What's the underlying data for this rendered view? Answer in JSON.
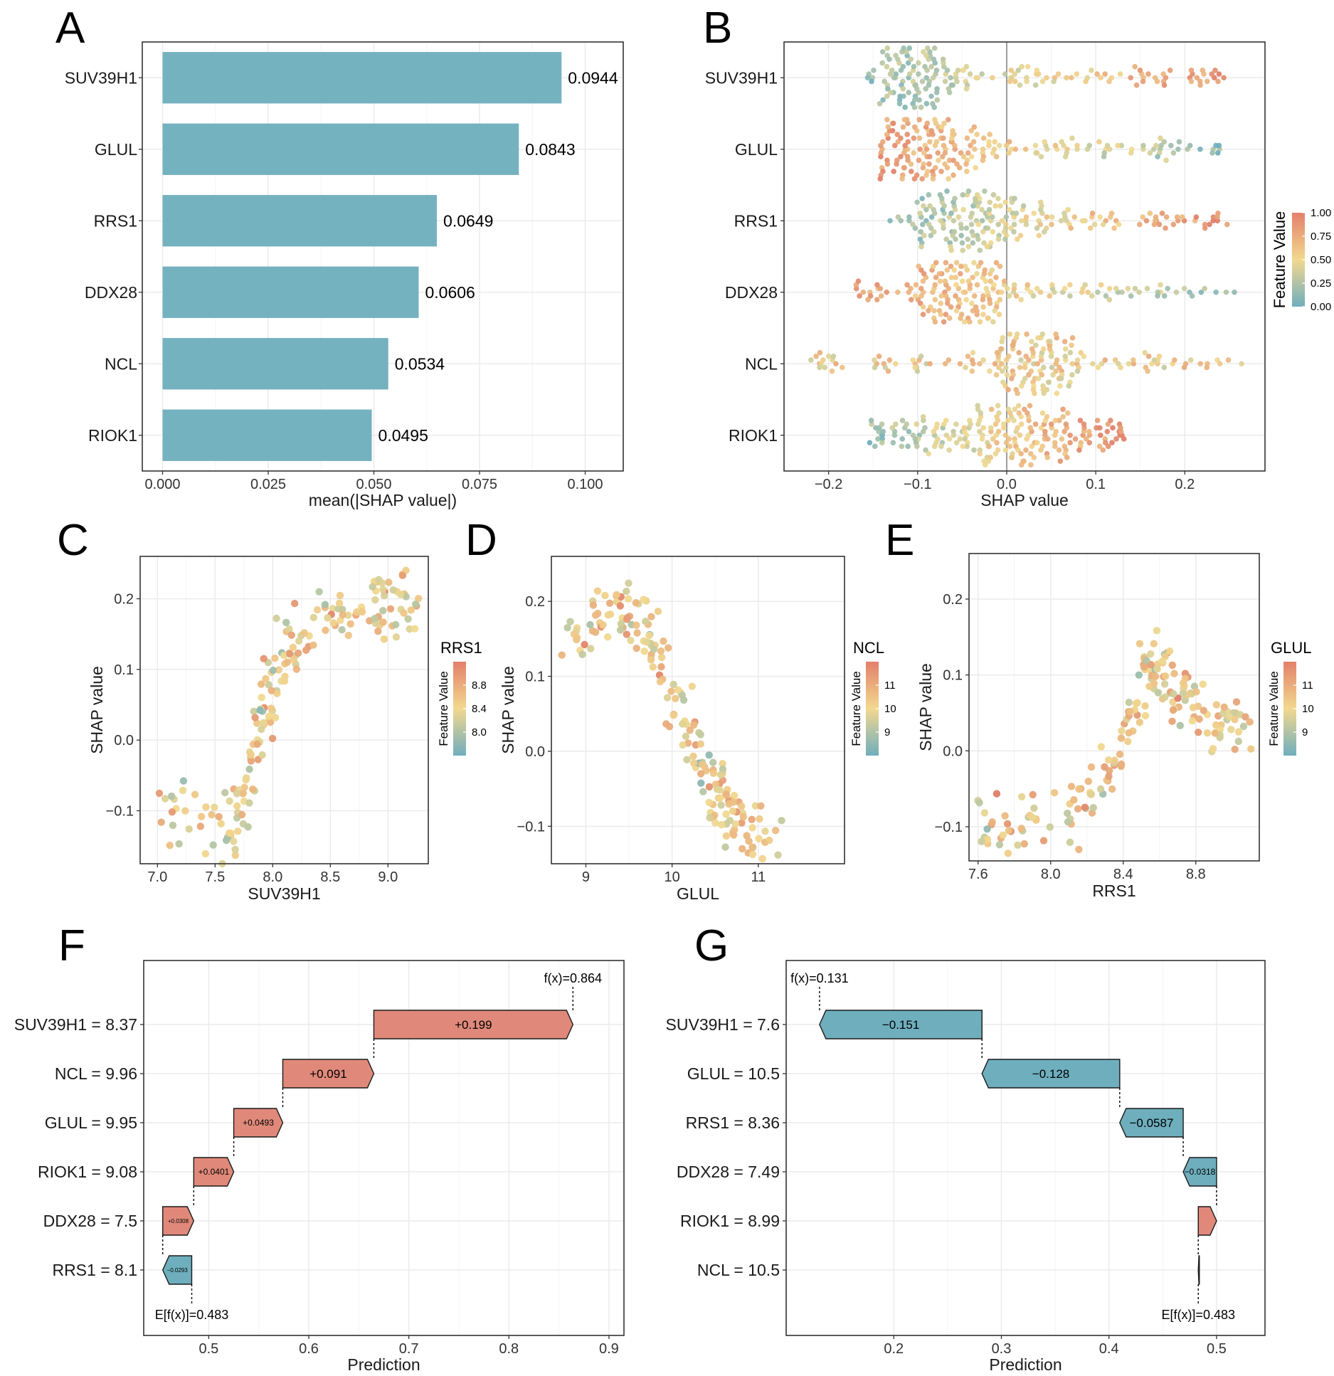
{
  "panel_letters": {
    "A": "A",
    "B": "B",
    "C": "C",
    "D": "D",
    "E": "E",
    "F": "F",
    "G": "G"
  },
  "legend_common": {
    "feature_value": "Feature Value"
  },
  "chart_data": [
    {
      "panel": "A",
      "type": "bar",
      "orientation": "horizontal",
      "categories": [
        "SUV39H1",
        "GLUL",
        "RRS1",
        "DDX28",
        "NCL",
        "RIOK1"
      ],
      "values": [
        0.0944,
        0.0843,
        0.0649,
        0.0606,
        0.0534,
        0.0495
      ],
      "value_labels": [
        "0.0944",
        "0.0843",
        "0.0649",
        "0.0606",
        "0.0534",
        "0.0495"
      ],
      "xlabel": "mean(|SHAP value|)",
      "xlim": [
        -0.0048,
        0.109
      ],
      "xticks": [
        0,
        0.025,
        0.05,
        0.075,
        0.1
      ],
      "xtick_labels": [
        "0.000",
        "0.025",
        "0.050",
        "0.075",
        "0.100"
      ],
      "bar_color": "#75b2c0"
    },
    {
      "panel": "B",
      "type": "beeswarm",
      "categories": [
        "SUV39H1",
        "GLUL",
        "RRS1",
        "DDX28",
        "NCL",
        "RIOK1"
      ],
      "xlabel": "SHAP value",
      "xlim": [
        -0.25,
        0.29
      ],
      "xticks": [
        -0.2,
        -0.1,
        0,
        0.1,
        0.2
      ],
      "xtick_labels": [
        "−0.2",
        "−0.1",
        "0.0",
        "0.1",
        "0.2"
      ],
      "legend": {
        "title": "Feature Value",
        "ticks": [
          "1.00",
          "0.75",
          "0.50",
          "0.25",
          "0.00"
        ]
      },
      "series": [
        {
          "name": "SUV39H1",
          "range": [
            -0.16,
            0.25
          ],
          "bulk": [
            -0.12,
            -0.08
          ],
          "low_is": "left"
        },
        {
          "name": "GLUL",
          "range": [
            -0.14,
            0.24
          ],
          "bulk": [
            -0.13,
            -0.06
          ],
          "low_is": "right"
        },
        {
          "name": "RRS1",
          "range": [
            -0.13,
            0.25
          ],
          "bulk": [
            -0.08,
            0.0
          ],
          "low_is": "left"
        },
        {
          "name": "DDX28",
          "range": [
            -0.17,
            0.26
          ],
          "bulk": [
            -0.08,
            -0.02
          ],
          "low_is": "right"
        },
        {
          "name": "NCL",
          "range": [
            -0.22,
            0.27
          ],
          "bulk": [
            0.0,
            0.06
          ],
          "low_is": "none"
        },
        {
          "name": "RIOK1",
          "range": [
            -0.16,
            0.13
          ],
          "bulk": [
            -0.06,
            0.08
          ],
          "low_is": "left"
        }
      ]
    },
    {
      "panel": "C",
      "type": "scatter",
      "xlabel": "SUV39H1",
      "ylabel": "SHAP value",
      "xlim": [
        6.85,
        9.35
      ],
      "ylim": [
        -0.175,
        0.26
      ],
      "xticks": [
        7.0,
        7.5,
        8.0,
        8.5,
        9.0
      ],
      "xtick_labels": [
        "7.0",
        "7.5",
        "8.0",
        "8.5",
        "9.0"
      ],
      "yticks": [
        -0.1,
        0,
        0.1,
        0.2
      ],
      "ytick_labels": [
        "−0.1",
        "0.0",
        "0.1",
        "0.2"
      ],
      "legend": {
        "title": "RRS1",
        "subtitle": "Feature Value",
        "ticks": [
          "8.8",
          "8.4",
          "8.0"
        ]
      },
      "trend": [
        [
          7.0,
          -0.09
        ],
        [
          7.4,
          -0.12
        ],
        [
          7.7,
          -0.12
        ],
        [
          7.9,
          0.0
        ],
        [
          8.0,
          0.1
        ],
        [
          8.3,
          0.16
        ],
        [
          8.9,
          0.2
        ],
        [
          9.25,
          0.2
        ]
      ]
    },
    {
      "panel": "D",
      "type": "scatter",
      "xlabel": "GLUL",
      "ylabel": "SHAP value",
      "xlim": [
        8.6,
        12.0
      ],
      "ylim": [
        -0.15,
        0.26
      ],
      "xticks": [
        9,
        10,
        11
      ],
      "xtick_labels": [
        "9",
        "10",
        "11"
      ],
      "yticks": [
        -0.1,
        0,
        0.1,
        0.2
      ],
      "ytick_labels": [
        "−0.1",
        "0.0",
        "0.1",
        "0.2"
      ],
      "legend": {
        "title": "NCL",
        "subtitle": "Feature Value",
        "ticks": [
          "11",
          "10",
          "9"
        ]
      },
      "trend": [
        [
          8.75,
          0.14
        ],
        [
          9.3,
          0.19
        ],
        [
          9.6,
          0.18
        ],
        [
          9.9,
          0.12
        ],
        [
          10.2,
          0.02
        ],
        [
          10.5,
          -0.05
        ],
        [
          10.8,
          -0.1
        ],
        [
          11.2,
          -0.12
        ]
      ]
    },
    {
      "panel": "E",
      "type": "scatter",
      "xlabel": "RRS1",
      "ylabel": "SHAP value",
      "xlim": [
        7.55,
        9.15
      ],
      "ylim": [
        -0.145,
        0.26
      ],
      "xticks": [
        7.6,
        8.0,
        8.4,
        8.8
      ],
      "xtick_labels": [
        "7.6",
        "8.0",
        "8.4",
        "8.8"
      ],
      "yticks": [
        -0.1,
        0,
        0.1,
        0.2
      ],
      "ytick_labels": [
        "−0.1",
        "0.0",
        "0.1",
        "0.2"
      ],
      "legend": {
        "title": "GLUL",
        "subtitle": "Feature Value",
        "ticks": [
          "11",
          "10",
          "9"
        ]
      },
      "trend": [
        [
          7.6,
          -0.1
        ],
        [
          8.0,
          -0.09
        ],
        [
          8.3,
          -0.04
        ],
        [
          8.45,
          0.05
        ],
        [
          8.55,
          0.12
        ],
        [
          8.7,
          0.08
        ],
        [
          8.9,
          0.04
        ],
        [
          9.1,
          0.04
        ]
      ]
    },
    {
      "panel": "F",
      "type": "waterfall",
      "xlabel": "Prediction",
      "xlim": [
        0.435,
        0.915
      ],
      "xticks": [
        0.5,
        0.6,
        0.7,
        0.8,
        0.9
      ],
      "xtick_labels": [
        "0.5",
        "0.6",
        "0.7",
        "0.8",
        "0.9"
      ],
      "base_value": 0.483,
      "base_label": "E[f(x)]=0.483",
      "fx": 0.864,
      "fx_label": "f(x)=0.864",
      "features": [
        "SUV39H1 = 8.37",
        "NCL = 9.96",
        "GLUL = 9.95",
        "RIOK1 = 9.08",
        "DDX28 = 7.5",
        "RRS1 = 8.1"
      ],
      "bars": [
        {
          "start": 0.665,
          "end": 0.864,
          "value": 0.199,
          "label": "+0.199"
        },
        {
          "start": 0.574,
          "end": 0.665,
          "value": 0.091,
          "label": "+0.091"
        },
        {
          "start": 0.525,
          "end": 0.574,
          "value": 0.0493,
          "label": "+0.0493"
        },
        {
          "start": 0.485,
          "end": 0.525,
          "value": 0.0401,
          "label": "+0.0401"
        },
        {
          "start": 0.454,
          "end": 0.485,
          "value": 0.0308,
          "label": "+0.0308"
        },
        {
          "start": 0.483,
          "end": 0.454,
          "value": -0.0293,
          "label": "−0.0293"
        }
      ]
    },
    {
      "panel": "G",
      "type": "waterfall",
      "xlabel": "Prediction",
      "xlim": [
        0.1,
        0.545
      ],
      "xticks": [
        0.2,
        0.3,
        0.4,
        0.5
      ],
      "xtick_labels": [
        "0.2",
        "0.3",
        "0.4",
        "0.5"
      ],
      "base_value": 0.483,
      "base_label": "E[f(x)]=0.483",
      "fx": 0.131,
      "fx_label": "f(x)=0.131",
      "features": [
        "SUV39H1 = 7.6",
        "GLUL = 10.5",
        "RRS1 = 8.36",
        "DDX28 = 7.49",
        "RIOK1 = 8.99",
        "NCL = 10.5"
      ],
      "bars": [
        {
          "start": 0.282,
          "end": 0.131,
          "value": -0.151,
          "label": "−0.151"
        },
        {
          "start": 0.41,
          "end": 0.282,
          "value": -0.128,
          "label": "−0.128"
        },
        {
          "start": 0.469,
          "end": 0.41,
          "value": -0.0587,
          "label": "−0.0587"
        },
        {
          "start": 0.5,
          "end": 0.469,
          "value": -0.0318,
          "label": "−0.0318"
        },
        {
          "start": 0.483,
          "end": 0.5,
          "value": 0.017,
          "label": ""
        },
        {
          "start": 0.484,
          "end": 0.483,
          "value": -0.001,
          "label": ""
        }
      ]
    }
  ]
}
